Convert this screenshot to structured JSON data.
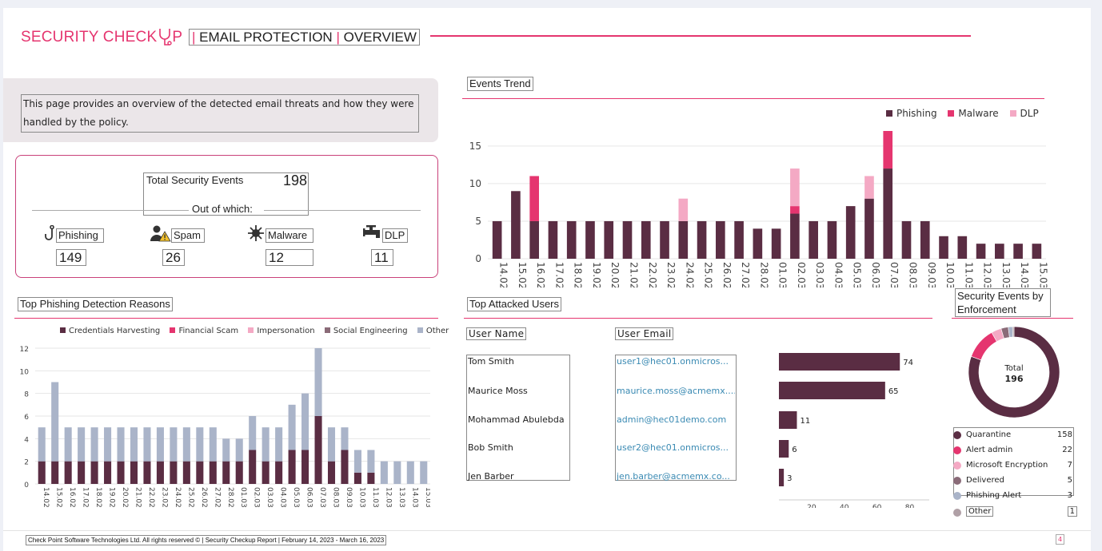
{
  "header": {
    "brand": "SECURITY CHECK",
    "separator": "|",
    "section": "EMAIL PROTECTION",
    "page": "OVERVIEW",
    "accent": "#e5356f"
  },
  "intro": {
    "text": "This page provides an overview of the detected email threats and how they were handled by the policy."
  },
  "summary": {
    "label": "Total Security Events",
    "total": "198",
    "subtitle": "Out of which:",
    "categories": [
      {
        "label": "Phishing",
        "value": "149",
        "icon": "fishhook-icon"
      },
      {
        "label": "Spam",
        "value": "26",
        "icon": "spam-user-warning-icon"
      },
      {
        "label": "Malware",
        "value": "12",
        "icon": "virus-icon"
      },
      {
        "label": "DLP",
        "value": "11",
        "icon": "faucet-icon"
      }
    ]
  },
  "events_trend": {
    "title": "Events Trend",
    "chart_data": {
      "type": "bar",
      "stacked": true,
      "categories": [
        "14.02",
        "15.02",
        "16.02",
        "17.02",
        "18.02",
        "19.02",
        "20.02",
        "21.02",
        "22.02",
        "23.02",
        "24.02",
        "25.02",
        "26.02",
        "27.02",
        "28.02",
        "01.03",
        "02.03",
        "03.03",
        "04.03",
        "05.03",
        "06.03",
        "07.03",
        "08.03",
        "09.03",
        "10.03",
        "11.03",
        "12.03",
        "13.03",
        "14.03",
        "15.03"
      ],
      "series": [
        {
          "name": "Phishing",
          "color": "#5a2d43",
          "values": [
            5,
            9,
            5,
            5,
            5,
            5,
            5,
            5,
            5,
            5,
            5,
            5,
            5,
            5,
            4,
            4,
            6,
            5,
            5,
            7,
            8,
            12,
            5,
            5,
            3,
            3,
            2,
            2,
            2,
            2
          ]
        },
        {
          "name": "Malware",
          "color": "#e5356f",
          "values": [
            0,
            0,
            6,
            0,
            0,
            0,
            0,
            0,
            0,
            0,
            0,
            0,
            0,
            0,
            0,
            0,
            1,
            0,
            0,
            0,
            0,
            5,
            0,
            0,
            0,
            0,
            0,
            0,
            0,
            0
          ]
        },
        {
          "name": "DLP",
          "color": "#f4a9c4",
          "values": [
            0,
            0,
            0,
            0,
            0,
            0,
            0,
            0,
            0,
            0,
            3,
            0,
            0,
            0,
            0,
            0,
            5,
            0,
            0,
            0,
            3,
            0,
            0,
            0,
            0,
            0,
            0,
            0,
            0,
            0
          ]
        }
      ],
      "yticks": [
        0,
        5,
        10,
        15
      ],
      "ylim": [
        0,
        17
      ],
      "legend": "top-right",
      "grid": true
    }
  },
  "phishing_reasons": {
    "title": "Top Phishing Detection Reasons",
    "chart_data": {
      "type": "bar",
      "stacked": true,
      "categories": [
        "14.02",
        "15.02",
        "16.02",
        "17.02",
        "18.02",
        "19.02",
        "20.02",
        "21.02",
        "22.02",
        "23.02",
        "24.02",
        "25.02",
        "26.02",
        "27.02",
        "28.02",
        "01.03",
        "02.03",
        "03.03",
        "04.03",
        "05.03",
        "06.03",
        "07.03",
        "08.03",
        "09.03",
        "10.03",
        "11.03",
        "12.03",
        "13.03",
        "14.03",
        "15.03"
      ],
      "series": [
        {
          "name": "Credentials Harvesting",
          "color": "#5a2d43",
          "values": [
            2,
            2,
            2,
            2,
            2,
            2,
            2,
            2,
            2,
            2,
            2,
            2,
            2,
            2,
            2,
            2,
            3,
            2,
            2,
            3,
            3,
            6,
            2,
            3,
            1,
            1,
            0,
            0,
            0,
            0
          ]
        },
        {
          "name": "Financial Scam",
          "color": "#e5356f",
          "values": [
            0,
            0,
            0,
            0,
            0,
            0,
            0,
            0,
            0,
            0,
            0,
            0,
            0,
            0,
            0,
            0,
            0,
            0,
            0,
            0,
            0,
            0,
            0,
            0,
            0,
            0,
            0,
            0,
            0,
            0
          ]
        },
        {
          "name": "Impersonation",
          "color": "#f4a9c4",
          "values": [
            0,
            0,
            0,
            0,
            0,
            0,
            0,
            0,
            0,
            0,
            0,
            0,
            0,
            0,
            0,
            0,
            0,
            0,
            0,
            0,
            0,
            0,
            0,
            0,
            0,
            0,
            0,
            0,
            0,
            0
          ]
        },
        {
          "name": "Social Engineering",
          "color": "#8a6b78",
          "values": [
            0,
            0,
            0,
            0,
            0,
            0,
            0,
            0,
            0,
            0,
            0,
            0,
            0,
            0,
            0,
            0,
            0,
            0,
            0,
            0,
            0,
            0,
            0,
            0,
            0,
            0,
            0,
            0,
            0,
            0
          ]
        },
        {
          "name": "Other",
          "color": "#aab4c9",
          "values": [
            3,
            7,
            3,
            3,
            3,
            3,
            3,
            3,
            3,
            3,
            3,
            3,
            3,
            3,
            2,
            2,
            3,
            3,
            3,
            4,
            5,
            6,
            3,
            2,
            2,
            2,
            2,
            2,
            2,
            2
          ]
        }
      ],
      "yticks": [
        0,
        2,
        4,
        6,
        8,
        10,
        12
      ],
      "ylim": [
        0,
        12
      ],
      "legend": "top",
      "grid": true
    }
  },
  "attacked_users": {
    "title": "Top Attacked Users",
    "col_name": "User Name",
    "col_email": "User Email",
    "users": [
      {
        "name": "Tom Smith",
        "email": "user1@hec01.onmicros...",
        "count": 74
      },
      {
        "name": "Maurice Moss",
        "email": "maurice.moss@acmemx....",
        "count": 65
      },
      {
        "name": "Mohammad Abulebda",
        "email": "admin@hec01demo.com",
        "count": 11
      },
      {
        "name": "Bob Smith",
        "email": "user2@hec01.onmicros...",
        "count": 6
      },
      {
        "name": "Jen Barber",
        "email": "jen.barber@acmemx.co...",
        "count": 3
      }
    ],
    "chart_data": {
      "type": "bar",
      "orientation": "horizontal",
      "categories": [
        "Tom Smith",
        "Maurice Moss",
        "Mohammad Abulebda",
        "Bob Smith",
        "Jen Barber"
      ],
      "values": [
        74,
        65,
        11,
        6,
        3
      ],
      "xticks": [
        20,
        40,
        60,
        80
      ],
      "xlim": [
        0,
        92
      ],
      "color": "#5a2d43"
    }
  },
  "enforcement": {
    "title": "Security Events by Enforcement",
    "total_label": "Total",
    "total_value": "196",
    "chart_data": {
      "type": "pie",
      "donut": true,
      "labels": [
        "Quarantine",
        "Alert admin",
        "Microsoft Encryption",
        "Delivered",
        "Phishing Alert",
        "Other"
      ],
      "values": [
        158,
        22,
        7,
        5,
        3,
        1
      ],
      "value_labels": [
        "158",
        "22",
        "7",
        "5",
        "3",
        "1"
      ],
      "colors": [
        "#5a2d43",
        "#e5356f",
        "#f4a9c4",
        "#8a6b78",
        "#aab4c9",
        "#b0a0a6"
      ]
    }
  },
  "footer": {
    "text": "Check Point Software Technologies Ltd. All rights reserved © | Security Checkup Report | February 14, 2023 - March 16, 2023",
    "page_number": "4"
  }
}
